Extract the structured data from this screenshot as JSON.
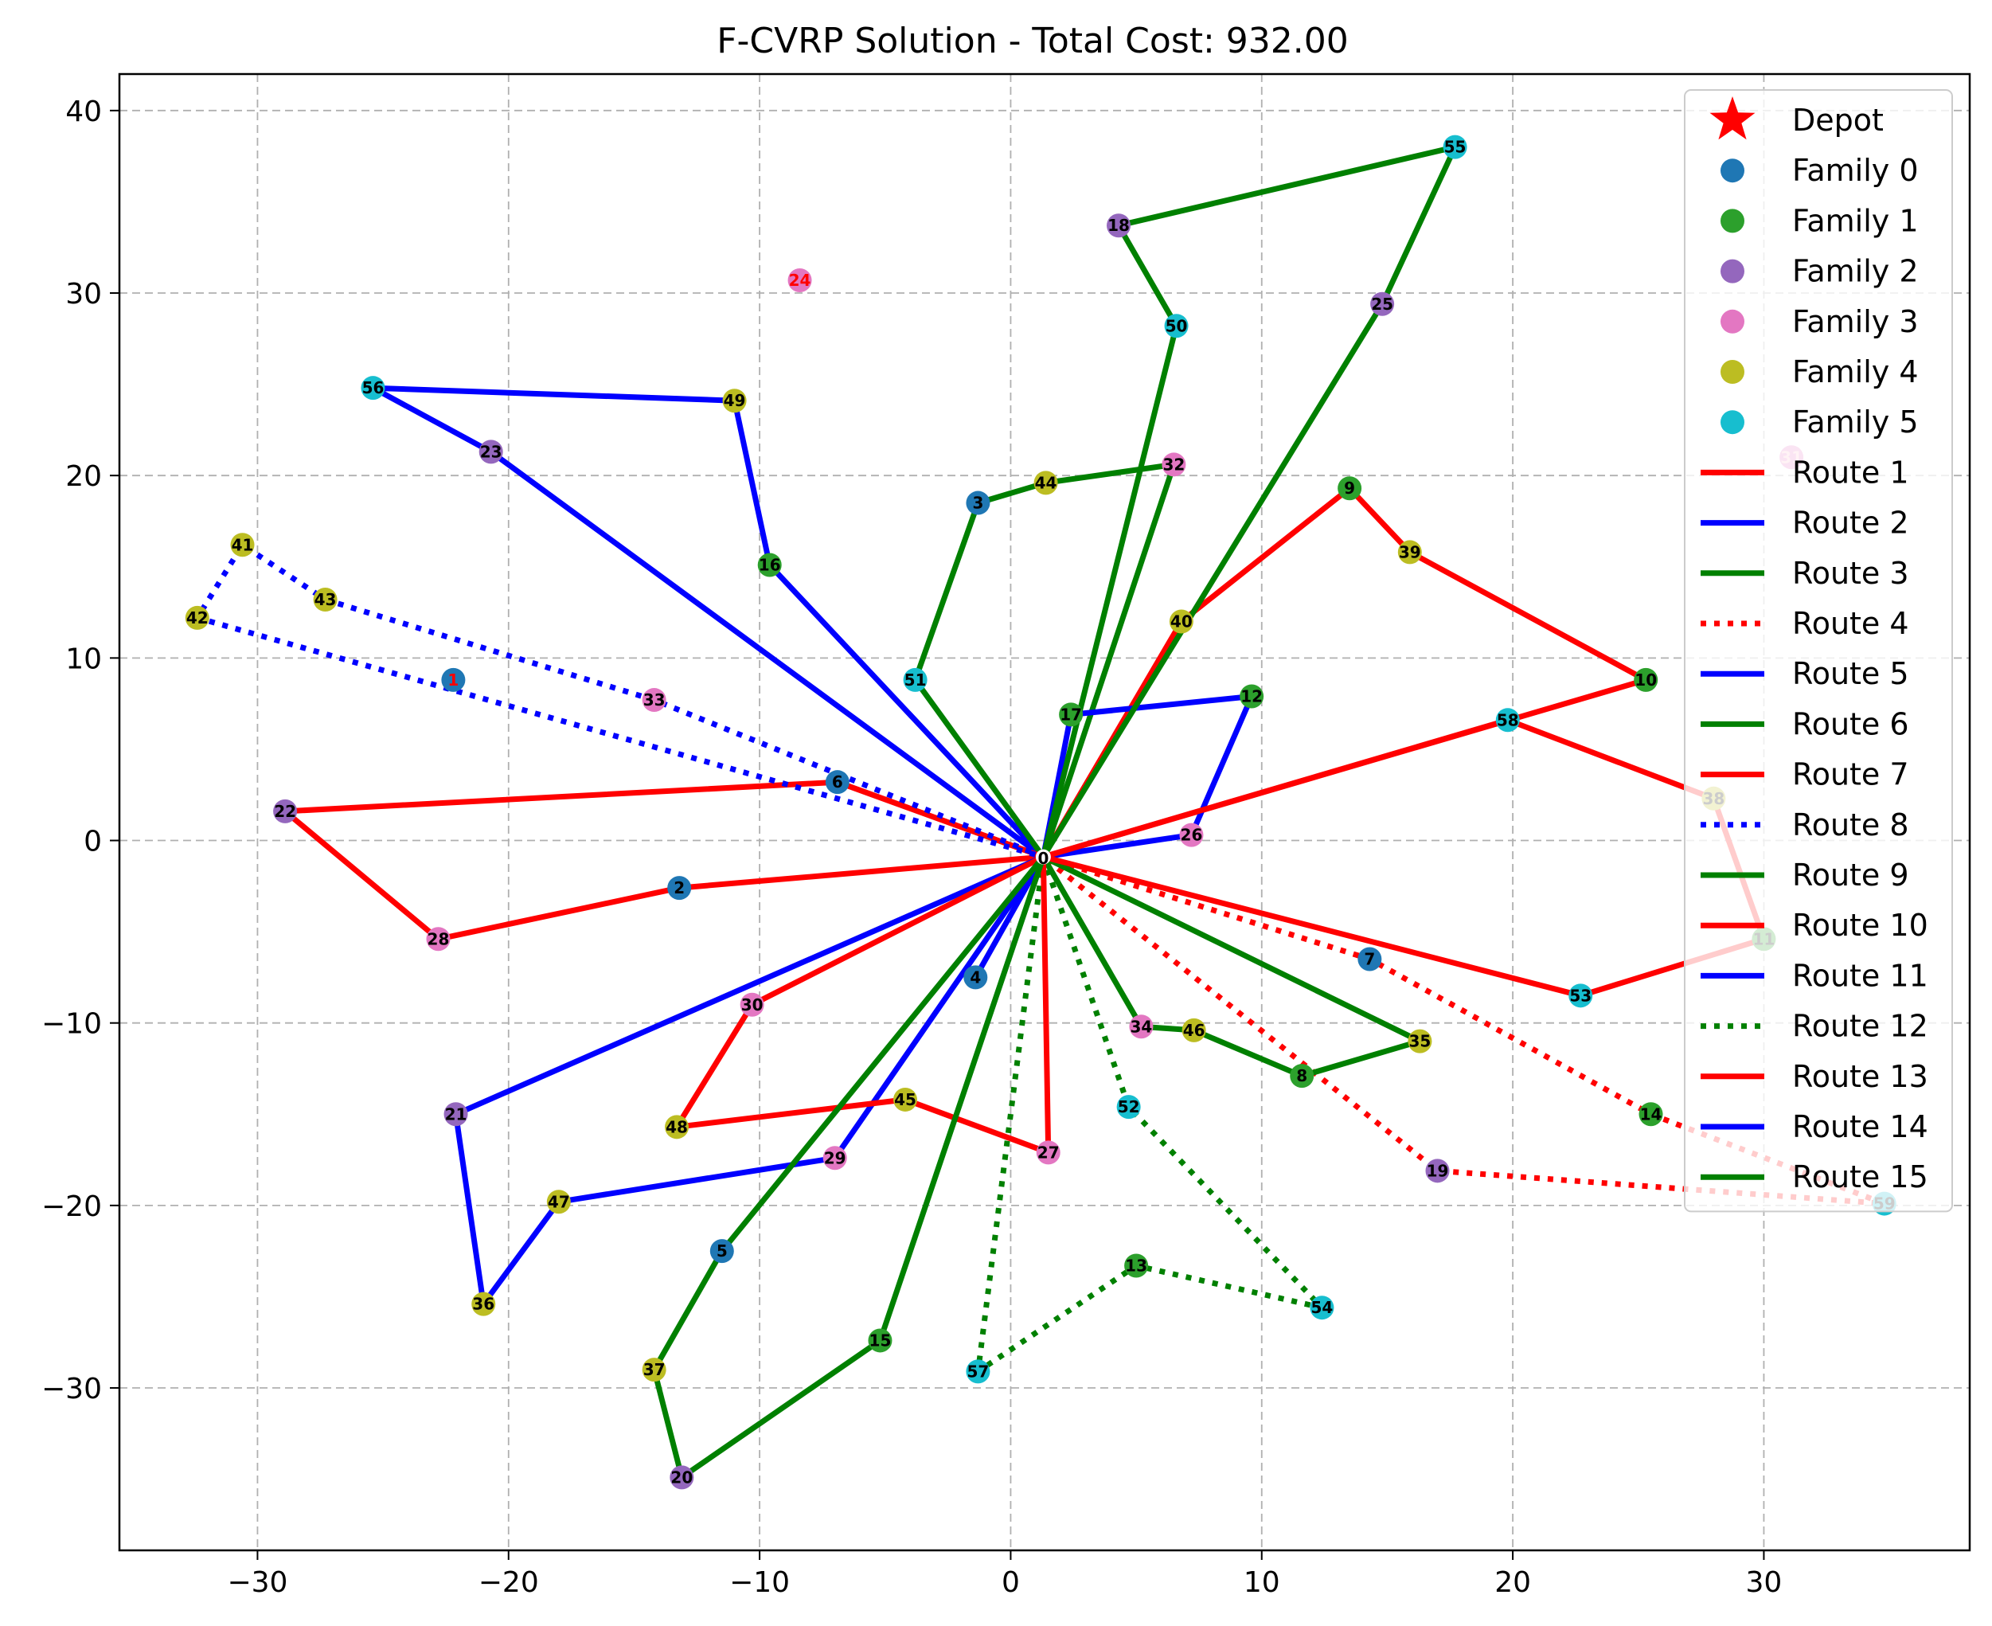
{
  "chart_data": {
    "type": "scatter",
    "title": "F-CVRP Solution - Total Cost: 932.00",
    "xlabel": "",
    "ylabel": "",
    "xlim": [
      -35.5,
      38.2
    ],
    "ylim": [
      -38.9,
      42.0
    ],
    "xticks": [
      -30,
      -20,
      -10,
      0,
      10,
      20,
      30
    ],
    "yticks": [
      -30,
      -20,
      -10,
      0,
      10,
      20,
      30,
      40
    ],
    "xtick_labels": [
      "−30",
      "−20",
      "−10",
      "0",
      "10",
      "20",
      "30"
    ],
    "ytick_labels": [
      "−30",
      "−20",
      "−10",
      "0",
      "10",
      "20",
      "30",
      "40"
    ],
    "grid": true,
    "legend_position": "top-right",
    "depot": {
      "id": 0,
      "x": 1.3,
      "y": -0.9,
      "label": "0",
      "legend": "Depot",
      "color": "#ff0000"
    },
    "families": [
      {
        "name": "Family 0",
        "color": "#1f77b4"
      },
      {
        "name": "Family 1",
        "color": "#2ca02c"
      },
      {
        "name": "Family 2",
        "color": "#9467bd"
      },
      {
        "name": "Family 3",
        "color": "#e377c2"
      },
      {
        "name": "Family 4",
        "color": "#bcbd22"
      },
      {
        "name": "Family 5",
        "color": "#17becf"
      }
    ],
    "nodes": [
      {
        "id": 1,
        "x": -22.2,
        "y": 8.8,
        "family": 0,
        "label_color": "#ff0000"
      },
      {
        "id": 2,
        "x": -13.2,
        "y": -2.6,
        "family": 0
      },
      {
        "id": 3,
        "x": -1.3,
        "y": 18.5,
        "family": 0
      },
      {
        "id": 4,
        "x": -1.4,
        "y": -7.5,
        "family": 0
      },
      {
        "id": 5,
        "x": -11.5,
        "y": -22.5,
        "family": 0
      },
      {
        "id": 6,
        "x": -6.9,
        "y": 3.2,
        "family": 0
      },
      {
        "id": 7,
        "x": 14.3,
        "y": -6.5,
        "family": 0
      },
      {
        "id": 8,
        "x": 11.6,
        "y": -12.9,
        "family": 1
      },
      {
        "id": 9,
        "x": 13.5,
        "y": 19.3,
        "family": 1
      },
      {
        "id": 10,
        "x": 25.3,
        "y": 8.8,
        "family": 1
      },
      {
        "id": 11,
        "x": 30.0,
        "y": -5.4,
        "family": 1
      },
      {
        "id": 12,
        "x": 9.6,
        "y": 7.9,
        "family": 1
      },
      {
        "id": 13,
        "x": 5.0,
        "y": -23.3,
        "family": 1
      },
      {
        "id": 14,
        "x": 25.5,
        "y": -15.0,
        "family": 1
      },
      {
        "id": 15,
        "x": -5.2,
        "y": -27.4,
        "family": 1
      },
      {
        "id": 16,
        "x": -9.6,
        "y": 15.1,
        "family": 1
      },
      {
        "id": 17,
        "x": 2.4,
        "y": 6.9,
        "family": 1
      },
      {
        "id": 18,
        "x": 4.3,
        "y": 33.7,
        "family": 2
      },
      {
        "id": 19,
        "x": 17.0,
        "y": -18.1,
        "family": 2
      },
      {
        "id": 20,
        "x": -13.1,
        "y": -34.9,
        "family": 2
      },
      {
        "id": 21,
        "x": -22.1,
        "y": -15.0,
        "family": 2
      },
      {
        "id": 22,
        "x": -28.9,
        "y": 1.6,
        "family": 2
      },
      {
        "id": 23,
        "x": -20.7,
        "y": 21.3,
        "family": 2
      },
      {
        "id": 24,
        "x": -8.4,
        "y": 30.7,
        "family": 3,
        "label_color": "#ff0000"
      },
      {
        "id": 25,
        "x": 14.8,
        "y": 29.4,
        "family": 2
      },
      {
        "id": 26,
        "x": 7.2,
        "y": 0.3,
        "family": 3
      },
      {
        "id": 27,
        "x": 1.5,
        "y": -17.1,
        "family": 3
      },
      {
        "id": 28,
        "x": -22.8,
        "y": -5.4,
        "family": 3
      },
      {
        "id": 29,
        "x": -7.0,
        "y": -17.4,
        "family": 3
      },
      {
        "id": 30,
        "x": -10.3,
        "y": -9.0,
        "family": 3
      },
      {
        "id": 31,
        "x": 31.1,
        "y": 21.0,
        "family": 3,
        "label_color": "#ffc0cb"
      },
      {
        "id": 32,
        "x": 6.5,
        "y": 20.6,
        "family": 3
      },
      {
        "id": 33,
        "x": -14.2,
        "y": 7.7,
        "family": 3
      },
      {
        "id": 34,
        "x": 5.2,
        "y": -10.2,
        "family": 3
      },
      {
        "id": 35,
        "x": 16.3,
        "y": -11.0,
        "family": 4
      },
      {
        "id": 36,
        "x": -21.0,
        "y": -25.4,
        "family": 4
      },
      {
        "id": 37,
        "x": -14.2,
        "y": -29.0,
        "family": 4
      },
      {
        "id": 38,
        "x": 28.0,
        "y": 2.3,
        "family": 4
      },
      {
        "id": 39,
        "x": 15.9,
        "y": 15.8,
        "family": 4
      },
      {
        "id": 40,
        "x": 6.8,
        "y": 12.0,
        "family": 4
      },
      {
        "id": 41,
        "x": -30.6,
        "y": 16.2,
        "family": 4
      },
      {
        "id": 42,
        "x": -32.4,
        "y": 12.2,
        "family": 4
      },
      {
        "id": 43,
        "x": -27.3,
        "y": 13.2,
        "family": 4
      },
      {
        "id": 44,
        "x": 1.4,
        "y": 19.6,
        "family": 4
      },
      {
        "id": 45,
        "x": -4.2,
        "y": -14.2,
        "family": 4
      },
      {
        "id": 46,
        "x": 7.3,
        "y": -10.4,
        "family": 4
      },
      {
        "id": 47,
        "x": -18.0,
        "y": -19.8,
        "family": 4
      },
      {
        "id": 48,
        "x": -13.3,
        "y": -15.7,
        "family": 4
      },
      {
        "id": 49,
        "x": -11.0,
        "y": 24.1,
        "family": 4
      },
      {
        "id": 50,
        "x": 6.6,
        "y": 28.2,
        "family": 5
      },
      {
        "id": 51,
        "x": -3.8,
        "y": 8.8,
        "family": 5
      },
      {
        "id": 52,
        "x": 4.7,
        "y": -14.6,
        "family": 5
      },
      {
        "id": 53,
        "x": 22.7,
        "y": -8.5,
        "family": 5
      },
      {
        "id": 54,
        "x": 12.4,
        "y": -25.6,
        "family": 5
      },
      {
        "id": 55,
        "x": 17.7,
        "y": 38.0,
        "family": 5
      },
      {
        "id": 56,
        "x": -25.4,
        "y": 24.8,
        "family": 5
      },
      {
        "id": 57,
        "x": -1.3,
        "y": -29.1,
        "family": 5
      },
      {
        "id": 58,
        "x": 19.8,
        "y": 6.6,
        "family": 5
      },
      {
        "id": 59,
        "x": 34.8,
        "y": -19.9,
        "family": 5
      }
    ],
    "routes": [
      {
        "name": "Route 1",
        "color": "#ff0000",
        "style": "solid",
        "path": [
          0,
          40,
          9,
          39,
          10,
          0
        ]
      },
      {
        "name": "Route 2",
        "color": "#0000ff",
        "style": "solid",
        "path": [
          0,
          16,
          49,
          56,
          23,
          0
        ]
      },
      {
        "name": "Route 3",
        "color": "#008000",
        "style": "solid",
        "path": [
          0,
          32,
          44,
          3,
          51,
          0
        ]
      },
      {
        "name": "Route 4",
        "color": "#ff0000",
        "style": "dotted",
        "path": [
          0,
          7,
          14,
          59,
          19,
          0
        ]
      },
      {
        "name": "Route 5",
        "color": "#0000ff",
        "style": "solid",
        "path": [
          0,
          17,
          12,
          26,
          0
        ]
      },
      {
        "name": "Route 6",
        "color": "#008000",
        "style": "solid",
        "path": [
          0,
          50,
          18,
          55,
          25,
          0
        ]
      },
      {
        "name": "Route 7",
        "color": "#ff0000",
        "style": "solid",
        "path": [
          0,
          6,
          22,
          28,
          2,
          0
        ]
      },
      {
        "name": "Route 8",
        "color": "#0000ff",
        "style": "dotted",
        "path": [
          0,
          33,
          43,
          41,
          42,
          0
        ]
      },
      {
        "name": "Route 9",
        "color": "#008000",
        "style": "solid",
        "path": [
          0,
          34,
          46,
          8,
          35,
          0
        ]
      },
      {
        "name": "Route 10",
        "color": "#ff0000",
        "style": "solid",
        "path": [
          0,
          58,
          38,
          11,
          53,
          0
        ]
      },
      {
        "name": "Route 11",
        "color": "#0000ff",
        "style": "solid",
        "path": [
          0,
          21,
          36,
          47,
          29,
          0
        ]
      },
      {
        "name": "Route 12",
        "color": "#008000",
        "style": "dotted",
        "path": [
          0,
          52,
          54,
          13,
          57,
          0
        ]
      },
      {
        "name": "Route 13",
        "color": "#ff0000",
        "style": "solid",
        "path": [
          0,
          30,
          48,
          45,
          27,
          0
        ]
      },
      {
        "name": "Route 14",
        "color": "#0000ff",
        "style": "solid",
        "path": [
          0,
          4,
          0
        ]
      },
      {
        "name": "Route 15",
        "color": "#008000",
        "style": "solid",
        "path": [
          0,
          15,
          20,
          37,
          5,
          0
        ]
      }
    ]
  }
}
